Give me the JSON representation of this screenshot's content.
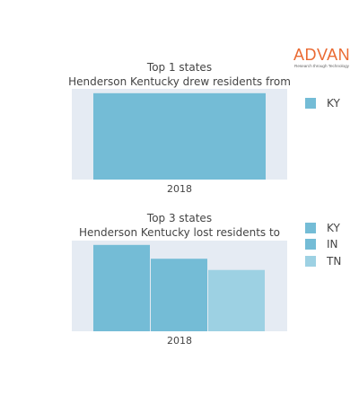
{
  "brand": {
    "name": "ADVAN",
    "tagline": "Research through Technology",
    "color": "#ea6a32"
  },
  "chart_data": [
    {
      "type": "bar",
      "title": "Top 1 states",
      "subtitle": "Henderson Kentucky drew residents from",
      "categories": [
        "2018"
      ],
      "series": [
        {
          "name": "KY",
          "values": [
            1
          ],
          "color": "#74bcd6"
        }
      ],
      "ylim": [
        0,
        1.05
      ],
      "grid": true,
      "legend": "top-right",
      "plot_background": "#e5ebf3"
    },
    {
      "type": "bar",
      "title": "Top 3 states",
      "subtitle": "Henderson Kentucky lost residents to",
      "categories": [
        "2018"
      ],
      "series": [
        {
          "name": "KY",
          "values": [
            1
          ],
          "color": "#74bcd6"
        },
        {
          "name": "IN",
          "values": [
            0.84
          ],
          "color": "#74bcd6"
        },
        {
          "name": "TN",
          "values": [
            0.71
          ],
          "color": "#9dd1e3"
        }
      ],
      "ylim": [
        0,
        1.05
      ],
      "grid": true,
      "legend": "top-right",
      "plot_background": "#e5ebf3"
    }
  ]
}
